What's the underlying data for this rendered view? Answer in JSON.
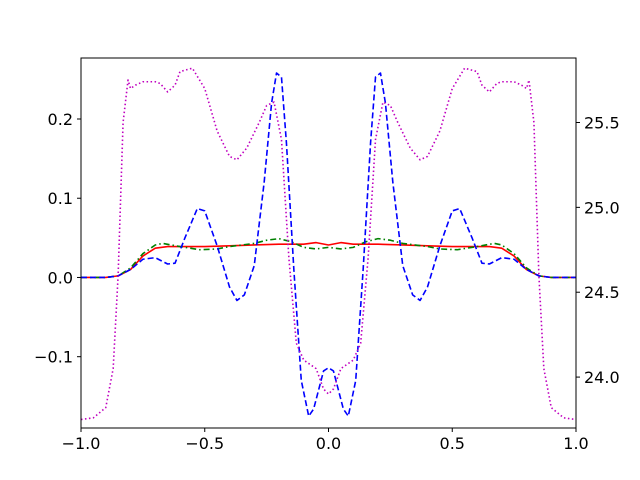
{
  "chart_data": {
    "type": "line",
    "title": "",
    "xlabel": "",
    "ylabel": "",
    "ylabel_right": "",
    "xlim": [
      -1.0,
      1.0
    ],
    "ylim": [
      -0.19,
      0.277
    ],
    "ylim_right": [
      23.7,
      25.88
    ],
    "grid": false,
    "legend": "none",
    "x_ticks": [
      {
        "value": -1.0,
        "label": "−1.0"
      },
      {
        "value": -0.5,
        "label": "−0.5"
      },
      {
        "value": 0.0,
        "label": "0.0"
      },
      {
        "value": 0.5,
        "label": "0.5"
      },
      {
        "value": 1.0,
        "label": "1.0"
      }
    ],
    "y_ticks_left": [
      {
        "value": -0.1,
        "label": "−0.1"
      },
      {
        "value": 0.0,
        "label": "0.0"
      },
      {
        "value": 0.1,
        "label": "0.1"
      },
      {
        "value": 0.2,
        "label": "0.2"
      }
    ],
    "y_ticks_right": [
      {
        "value": 24.0,
        "label": "24.0"
      },
      {
        "value": 24.5,
        "label": "24.5"
      },
      {
        "value": 25.0,
        "label": "25.0"
      },
      {
        "value": 25.5,
        "label": "25.5"
      }
    ],
    "series": [
      {
        "axis": "left",
        "color": "#ff0000",
        "dash": "solid",
        "points": [
          [
            -1.0,
            0.0
          ],
          [
            -0.9,
            0.0
          ],
          [
            -0.85,
            0.002
          ],
          [
            -0.8,
            0.01
          ],
          [
            -0.75,
            0.027
          ],
          [
            -0.7,
            0.037
          ],
          [
            -0.65,
            0.039
          ],
          [
            -0.6,
            0.039
          ],
          [
            -0.5,
            0.039
          ],
          [
            -0.4,
            0.04
          ],
          [
            -0.3,
            0.041
          ],
          [
            -0.2,
            0.042
          ],
          [
            -0.15,
            0.042
          ],
          [
            -0.1,
            0.042
          ],
          [
            -0.05,
            0.044
          ],
          [
            0.0,
            0.041
          ],
          [
            0.05,
            0.044
          ],
          [
            0.1,
            0.042
          ],
          [
            0.2,
            0.042
          ],
          [
            0.3,
            0.041
          ],
          [
            0.4,
            0.04
          ],
          [
            0.5,
            0.039
          ],
          [
            0.6,
            0.039
          ],
          [
            0.65,
            0.039
          ],
          [
            0.7,
            0.037
          ],
          [
            0.75,
            0.027
          ],
          [
            0.8,
            0.01
          ],
          [
            0.85,
            0.002
          ],
          [
            0.9,
            0.0
          ],
          [
            1.0,
            0.0
          ]
        ]
      },
      {
        "axis": "left",
        "color": "#008000",
        "dash": "dashdot",
        "points": [
          [
            -1.0,
            0.0
          ],
          [
            -0.9,
            0.0
          ],
          [
            -0.85,
            0.002
          ],
          [
            -0.8,
            0.012
          ],
          [
            -0.75,
            0.03
          ],
          [
            -0.7,
            0.041
          ],
          [
            -0.67,
            0.043
          ],
          [
            -0.6,
            0.039
          ],
          [
            -0.52,
            0.035
          ],
          [
            -0.45,
            0.036
          ],
          [
            -0.4,
            0.039
          ],
          [
            -0.3,
            0.043
          ],
          [
            -0.25,
            0.047
          ],
          [
            -0.2,
            0.049
          ],
          [
            -0.15,
            0.045
          ],
          [
            -0.1,
            0.038
          ],
          [
            -0.05,
            0.036
          ],
          [
            0.0,
            0.038
          ],
          [
            0.05,
            0.036
          ],
          [
            0.1,
            0.038
          ],
          [
            0.15,
            0.045
          ],
          [
            0.2,
            0.049
          ],
          [
            0.25,
            0.047
          ],
          [
            0.3,
            0.043
          ],
          [
            0.4,
            0.039
          ],
          [
            0.45,
            0.036
          ],
          [
            0.52,
            0.035
          ],
          [
            0.6,
            0.039
          ],
          [
            0.67,
            0.043
          ],
          [
            0.7,
            0.041
          ],
          [
            0.75,
            0.03
          ],
          [
            0.8,
            0.012
          ],
          [
            0.85,
            0.002
          ],
          [
            0.9,
            0.0
          ],
          [
            1.0,
            0.0
          ]
        ]
      },
      {
        "axis": "left",
        "color": "#0000ff",
        "dash": "dashed",
        "points": [
          [
            -1.0,
            0.0
          ],
          [
            -0.9,
            0.0
          ],
          [
            -0.85,
            0.002
          ],
          [
            -0.8,
            0.01
          ],
          [
            -0.75,
            0.023
          ],
          [
            -0.7,
            0.025
          ],
          [
            -0.65,
            0.017
          ],
          [
            -0.62,
            0.018
          ],
          [
            -0.58,
            0.05
          ],
          [
            -0.53,
            0.087
          ],
          [
            -0.5,
            0.084
          ],
          [
            -0.45,
            0.04
          ],
          [
            -0.4,
            -0.012
          ],
          [
            -0.37,
            -0.029
          ],
          [
            -0.34,
            -0.022
          ],
          [
            -0.3,
            0.015
          ],
          [
            -0.26,
            0.12
          ],
          [
            -0.23,
            0.22
          ],
          [
            -0.21,
            0.258
          ],
          [
            -0.19,
            0.253
          ],
          [
            -0.17,
            0.17
          ],
          [
            -0.14,
            0.01
          ],
          [
            -0.11,
            -0.13
          ],
          [
            -0.08,
            -0.175
          ],
          [
            -0.06,
            -0.166
          ],
          [
            -0.02,
            -0.118
          ],
          [
            0.0,
            -0.114
          ],
          [
            0.02,
            -0.118
          ],
          [
            0.06,
            -0.166
          ],
          [
            0.08,
            -0.175
          ],
          [
            0.11,
            -0.13
          ],
          [
            0.14,
            0.01
          ],
          [
            0.17,
            0.17
          ],
          [
            0.19,
            0.253
          ],
          [
            0.21,
            0.258
          ],
          [
            0.23,
            0.22
          ],
          [
            0.26,
            0.12
          ],
          [
            0.3,
            0.015
          ],
          [
            0.34,
            -0.022
          ],
          [
            0.37,
            -0.029
          ],
          [
            0.4,
            -0.012
          ],
          [
            0.45,
            0.04
          ],
          [
            0.5,
            0.084
          ],
          [
            0.53,
            0.087
          ],
          [
            0.58,
            0.05
          ],
          [
            0.62,
            0.018
          ],
          [
            0.65,
            0.017
          ],
          [
            0.7,
            0.025
          ],
          [
            0.75,
            0.023
          ],
          [
            0.8,
            0.01
          ],
          [
            0.85,
            0.002
          ],
          [
            0.9,
            0.0
          ],
          [
            1.0,
            0.0
          ]
        ]
      },
      {
        "axis": "right",
        "color": "#bf00bf",
        "dash": "dotted",
        "points": [
          [
            -1.0,
            23.75
          ],
          [
            -0.95,
            23.76
          ],
          [
            -0.9,
            23.82
          ],
          [
            -0.87,
            24.05
          ],
          [
            -0.85,
            24.6
          ],
          [
            -0.83,
            25.5
          ],
          [
            -0.81,
            25.75
          ],
          [
            -0.8,
            25.7
          ],
          [
            -0.78,
            25.72
          ],
          [
            -0.75,
            25.74
          ],
          [
            -0.7,
            25.74
          ],
          [
            -0.68,
            25.73
          ],
          [
            -0.65,
            25.68
          ],
          [
            -0.62,
            25.72
          ],
          [
            -0.6,
            25.8
          ],
          [
            -0.55,
            25.82
          ],
          [
            -0.5,
            25.7
          ],
          [
            -0.45,
            25.45
          ],
          [
            -0.4,
            25.3
          ],
          [
            -0.37,
            25.28
          ],
          [
            -0.33,
            25.35
          ],
          [
            -0.28,
            25.5
          ],
          [
            -0.25,
            25.6
          ],
          [
            -0.22,
            25.62
          ],
          [
            -0.19,
            25.4
          ],
          [
            -0.16,
            24.7
          ],
          [
            -0.13,
            24.2
          ],
          [
            -0.1,
            24.1
          ],
          [
            -0.05,
            24.05
          ],
          [
            -0.02,
            23.93
          ],
          [
            0.0,
            23.9
          ],
          [
            0.02,
            23.93
          ],
          [
            0.05,
            24.05
          ],
          [
            0.1,
            24.1
          ],
          [
            0.13,
            24.2
          ],
          [
            0.16,
            24.7
          ],
          [
            0.19,
            25.4
          ],
          [
            0.22,
            25.62
          ],
          [
            0.25,
            25.6
          ],
          [
            0.28,
            25.5
          ],
          [
            0.33,
            25.35
          ],
          [
            0.37,
            25.28
          ],
          [
            0.4,
            25.3
          ],
          [
            0.45,
            25.45
          ],
          [
            0.5,
            25.7
          ],
          [
            0.55,
            25.82
          ],
          [
            0.6,
            25.8
          ],
          [
            0.62,
            25.72
          ],
          [
            0.65,
            25.68
          ],
          [
            0.68,
            25.73
          ],
          [
            0.7,
            25.74
          ],
          [
            0.75,
            25.74
          ],
          [
            0.78,
            25.72
          ],
          [
            0.8,
            25.7
          ],
          [
            0.81,
            25.75
          ],
          [
            0.83,
            25.5
          ],
          [
            0.85,
            24.6
          ],
          [
            0.87,
            24.05
          ],
          [
            0.9,
            23.82
          ],
          [
            0.95,
            23.76
          ],
          [
            1.0,
            23.75
          ]
        ]
      }
    ]
  }
}
